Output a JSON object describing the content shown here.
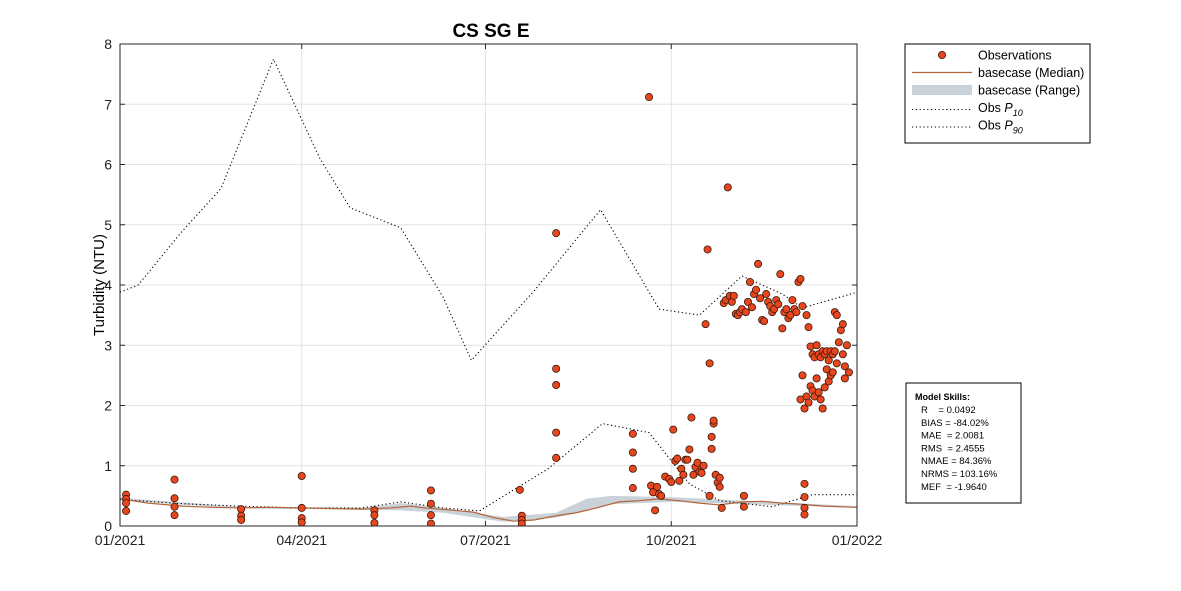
{
  "chart_data": {
    "type": "scatter",
    "title": "CS SG E",
    "xlabel": "",
    "ylabel": "Turbidity (NTU)",
    "xlim": [
      "2021-01-01",
      "2022-01-01"
    ],
    "ylim": [
      0,
      8
    ],
    "grid": true,
    "x_ticks": [
      "01/2021",
      "04/2021",
      "07/2021",
      "10/2021",
      "01/2022"
    ],
    "y_ticks": [
      "0",
      "1",
      "2",
      "3",
      "4",
      "5",
      "6",
      "7",
      "8"
    ],
    "legend": {
      "placement": "outside-top-right",
      "entries": [
        {
          "label": "Observations",
          "symbol": "marker"
        },
        {
          "label": "basecase (Median)",
          "symbol": "line"
        },
        {
          "label": "basecase (Range)",
          "symbol": "band"
        },
        {
          "label": "Obs P10",
          "text": "Obs ",
          "italic": "P",
          "sub": "10",
          "symbol": "dotted"
        },
        {
          "label": "Obs P90",
          "text": "Obs ",
          "italic": "P",
          "sub": "90",
          "symbol": "dotted"
        }
      ]
    },
    "colors": {
      "observations": "#e8461c",
      "median": "#b5643a",
      "range": "#c8d2d8",
      "percentile": "#000000"
    },
    "series": [
      {
        "name": "Observations",
        "kind": "scatter",
        "points": [
          [
            "2021-01-04",
            0.52
          ],
          [
            "2021-01-04",
            0.45
          ],
          [
            "2021-01-04",
            0.38
          ],
          [
            "2021-01-04",
            0.25
          ],
          [
            "2021-01-28",
            0.77
          ],
          [
            "2021-01-28",
            0.46
          ],
          [
            "2021-01-28",
            0.32
          ],
          [
            "2021-01-28",
            0.18
          ],
          [
            "2021-03-02",
            0.28
          ],
          [
            "2021-03-02",
            0.17
          ],
          [
            "2021-03-02",
            0.1
          ],
          [
            "2021-04-01",
            0.83
          ],
          [
            "2021-04-01",
            0.3
          ],
          [
            "2021-04-01",
            0.13
          ],
          [
            "2021-04-01",
            0.06
          ],
          [
            "2021-05-07",
            0.26
          ],
          [
            "2021-05-07",
            0.18
          ],
          [
            "2021-05-07",
            0.05
          ],
          [
            "2021-06-04",
            0.59
          ],
          [
            "2021-06-04",
            0.37
          ],
          [
            "2021-06-04",
            0.18
          ],
          [
            "2021-06-04",
            0.04
          ],
          [
            "2021-07-18",
            0.6
          ],
          [
            "2021-07-19",
            0.17
          ],
          [
            "2021-07-19",
            0.1
          ],
          [
            "2021-07-19",
            0.04
          ],
          [
            "2021-08-05",
            4.86
          ],
          [
            "2021-08-05",
            2.61
          ],
          [
            "2021-08-05",
            2.34
          ],
          [
            "2021-08-05",
            1.55
          ],
          [
            "2021-08-05",
            1.13
          ],
          [
            "2021-09-12",
            1.53
          ],
          [
            "2021-09-12",
            1.22
          ],
          [
            "2021-09-12",
            0.95
          ],
          [
            "2021-09-12",
            0.63
          ],
          [
            "2021-09-20",
            7.12
          ],
          [
            "2021-09-21",
            0.67
          ],
          [
            "2021-09-22",
            0.56
          ],
          [
            "2021-09-23",
            0.26
          ],
          [
            "2021-09-24",
            0.65
          ],
          [
            "2021-09-25",
            0.53
          ],
          [
            "2021-09-26",
            0.5
          ],
          [
            "2021-09-28",
            0.82
          ],
          [
            "2021-09-30",
            0.78
          ],
          [
            "2021-10-01",
            0.73
          ],
          [
            "2021-10-02",
            1.6
          ],
          [
            "2021-10-03",
            1.08
          ],
          [
            "2021-10-04",
            1.12
          ],
          [
            "2021-10-05",
            0.75
          ],
          [
            "2021-10-06",
            0.95
          ],
          [
            "2021-10-07",
            0.85
          ],
          [
            "2021-10-08",
            1.1
          ],
          [
            "2021-10-09",
            1.1
          ],
          [
            "2021-10-10",
            1.27
          ],
          [
            "2021-10-11",
            1.8
          ],
          [
            "2021-10-12",
            0.85
          ],
          [
            "2021-10-13",
            0.98
          ],
          [
            "2021-10-14",
            1.05
          ],
          [
            "2021-10-15",
            0.9
          ],
          [
            "2021-10-16",
            0.88
          ],
          [
            "2021-10-17",
            1.0
          ],
          [
            "2021-10-18",
            3.35
          ],
          [
            "2021-10-19",
            4.59
          ],
          [
            "2021-10-20",
            2.7
          ],
          [
            "2021-10-20",
            0.5
          ],
          [
            "2021-10-21",
            1.28
          ],
          [
            "2021-10-21",
            1.48
          ],
          [
            "2021-10-22",
            1.7
          ],
          [
            "2021-10-22",
            1.75
          ],
          [
            "2021-10-23",
            0.85
          ],
          [
            "2021-10-24",
            0.72
          ],
          [
            "2021-10-25",
            0.65
          ],
          [
            "2021-10-25",
            0.8
          ],
          [
            "2021-10-26",
            0.3
          ],
          [
            "2021-10-27",
            3.7
          ],
          [
            "2021-10-28",
            3.75
          ],
          [
            "2021-10-29",
            5.62
          ],
          [
            "2021-10-30",
            3.82
          ],
          [
            "2021-10-31",
            3.72
          ],
          [
            "2021-11-01",
            3.82
          ],
          [
            "2021-11-02",
            3.52
          ],
          [
            "2021-11-03",
            3.5
          ],
          [
            "2021-11-04",
            3.55
          ],
          [
            "2021-11-05",
            3.6
          ],
          [
            "2021-11-06",
            0.5
          ],
          [
            "2021-11-06",
            0.32
          ],
          [
            "2021-11-07",
            3.55
          ],
          [
            "2021-11-08",
            3.72
          ],
          [
            "2021-11-09",
            4.05
          ],
          [
            "2021-11-10",
            3.63
          ],
          [
            "2021-11-11",
            3.85
          ],
          [
            "2021-11-12",
            3.92
          ],
          [
            "2021-11-13",
            4.35
          ],
          [
            "2021-11-14",
            3.78
          ],
          [
            "2021-11-15",
            3.42
          ],
          [
            "2021-11-16",
            3.4
          ],
          [
            "2021-11-17",
            3.85
          ],
          [
            "2021-11-18",
            3.72
          ],
          [
            "2021-11-19",
            3.65
          ],
          [
            "2021-11-20",
            3.55
          ],
          [
            "2021-11-21",
            3.6
          ],
          [
            "2021-11-22",
            3.75
          ],
          [
            "2021-11-23",
            3.68
          ],
          [
            "2021-11-24",
            4.18
          ],
          [
            "2021-11-25",
            3.28
          ],
          [
            "2021-11-26",
            3.55
          ],
          [
            "2021-11-27",
            3.6
          ],
          [
            "2021-11-28",
            3.45
          ],
          [
            "2021-11-29",
            3.5
          ],
          [
            "2021-11-30",
            3.75
          ],
          [
            "2021-12-01",
            3.6
          ],
          [
            "2021-12-02",
            3.55
          ],
          [
            "2021-12-03",
            4.05
          ],
          [
            "2021-12-04",
            2.1
          ],
          [
            "2021-12-04",
            4.1
          ],
          [
            "2021-12-05",
            2.5
          ],
          [
            "2021-12-05",
            3.65
          ],
          [
            "2021-12-06",
            1.95
          ],
          [
            "2021-12-06",
            0.7
          ],
          [
            "2021-12-06",
            0.48
          ],
          [
            "2021-12-06",
            0.3
          ],
          [
            "2021-12-06",
            0.19
          ],
          [
            "2021-12-07",
            3.5
          ],
          [
            "2021-12-07",
            2.15
          ],
          [
            "2021-12-08",
            3.3
          ],
          [
            "2021-12-08",
            2.05
          ],
          [
            "2021-12-09",
            2.98
          ],
          [
            "2021-12-09",
            2.32
          ],
          [
            "2021-12-10",
            2.85
          ],
          [
            "2021-12-10",
            2.25
          ],
          [
            "2021-12-11",
            2.8
          ],
          [
            "2021-12-11",
            2.15
          ],
          [
            "2021-12-12",
            3.0
          ],
          [
            "2021-12-12",
            2.45
          ],
          [
            "2021-12-13",
            2.85
          ],
          [
            "2021-12-13",
            2.22
          ],
          [
            "2021-12-14",
            2.8
          ],
          [
            "2021-12-14",
            2.1
          ],
          [
            "2021-12-15",
            2.9
          ],
          [
            "2021-12-15",
            1.95
          ],
          [
            "2021-12-16",
            2.85
          ],
          [
            "2021-12-16",
            2.3
          ],
          [
            "2021-12-17",
            2.9
          ],
          [
            "2021-12-17",
            2.6
          ],
          [
            "2021-12-18",
            2.75
          ],
          [
            "2021-12-18",
            2.4
          ],
          [
            "2021-12-19",
            2.9
          ],
          [
            "2021-12-19",
            2.5
          ],
          [
            "2021-12-20",
            2.85
          ],
          [
            "2021-12-20",
            2.55
          ],
          [
            "2021-12-21",
            3.55
          ],
          [
            "2021-12-21",
            2.9
          ],
          [
            "2021-12-22",
            3.5
          ],
          [
            "2021-12-22",
            2.7
          ],
          [
            "2021-12-23",
            3.05
          ],
          [
            "2021-12-24",
            3.25
          ],
          [
            "2021-12-25",
            3.35
          ],
          [
            "2021-12-25",
            2.85
          ],
          [
            "2021-12-26",
            2.45
          ],
          [
            "2021-12-26",
            2.65
          ],
          [
            "2021-12-27",
            3.0
          ],
          [
            "2021-12-28",
            2.55
          ]
        ]
      },
      {
        "name": "basecase (Median)",
        "kind": "line",
        "points": [
          [
            "2021-01-01",
            0.45
          ],
          [
            "2021-01-15",
            0.38
          ],
          [
            "2021-02-01",
            0.33
          ],
          [
            "2021-02-15",
            0.31
          ],
          [
            "2021-03-01",
            0.3
          ],
          [
            "2021-03-15",
            0.31
          ],
          [
            "2021-04-01",
            0.3
          ],
          [
            "2021-04-15",
            0.29
          ],
          [
            "2021-05-01",
            0.28
          ],
          [
            "2021-05-15",
            0.3
          ],
          [
            "2021-05-25",
            0.33
          ],
          [
            "2021-06-01",
            0.3
          ],
          [
            "2021-06-15",
            0.26
          ],
          [
            "2021-06-25",
            0.23
          ],
          [
            "2021-07-05",
            0.14
          ],
          [
            "2021-07-15",
            0.08
          ],
          [
            "2021-07-25",
            0.1
          ],
          [
            "2021-08-05",
            0.17
          ],
          [
            "2021-08-15",
            0.22
          ],
          [
            "2021-08-25",
            0.3
          ],
          [
            "2021-09-05",
            0.4
          ],
          [
            "2021-09-15",
            0.42
          ],
          [
            "2021-09-25",
            0.45
          ],
          [
            "2021-10-05",
            0.42
          ],
          [
            "2021-10-15",
            0.38
          ],
          [
            "2021-10-25",
            0.35
          ],
          [
            "2021-11-05",
            0.4
          ],
          [
            "2021-11-15",
            0.41
          ],
          [
            "2021-11-25",
            0.38
          ],
          [
            "2021-12-05",
            0.36
          ],
          [
            "2021-12-15",
            0.33
          ],
          [
            "2022-01-01",
            0.31
          ]
        ]
      },
      {
        "name": "basecase (Range)",
        "kind": "band",
        "lower": [
          [
            "2021-01-01",
            0.43
          ],
          [
            "2021-03-01",
            0.29
          ],
          [
            "2021-05-01",
            0.27
          ],
          [
            "2021-05-20",
            0.26
          ],
          [
            "2021-06-10",
            0.22
          ],
          [
            "2021-07-10",
            0.07
          ],
          [
            "2021-08-05",
            0.14
          ],
          [
            "2021-08-20",
            0.25
          ],
          [
            "2021-09-01",
            0.36
          ],
          [
            "2021-10-01",
            0.4
          ],
          [
            "2021-11-01",
            0.37
          ],
          [
            "2022-01-01",
            0.3
          ]
        ],
        "upper": [
          [
            "2021-01-01",
            0.47
          ],
          [
            "2021-03-01",
            0.32
          ],
          [
            "2021-05-01",
            0.3
          ],
          [
            "2021-05-20",
            0.38
          ],
          [
            "2021-06-10",
            0.3
          ],
          [
            "2021-07-10",
            0.15
          ],
          [
            "2021-08-05",
            0.22
          ],
          [
            "2021-08-20",
            0.45
          ],
          [
            "2021-09-01",
            0.5
          ],
          [
            "2021-10-01",
            0.48
          ],
          [
            "2021-11-01",
            0.43
          ],
          [
            "2022-01-01",
            0.33
          ]
        ]
      },
      {
        "name": "Obs P10",
        "kind": "dotted",
        "points": [
          [
            "2021-01-01",
            0.44
          ],
          [
            "2021-02-01",
            0.37
          ],
          [
            "2021-03-01",
            0.33
          ],
          [
            "2021-04-01",
            0.3
          ],
          [
            "2021-05-01",
            0.3
          ],
          [
            "2021-05-20",
            0.4
          ],
          [
            "2021-06-10",
            0.3
          ],
          [
            "2021-06-28",
            0.25
          ],
          [
            "2021-08-01",
            0.95
          ],
          [
            "2021-08-28",
            1.7
          ],
          [
            "2021-09-20",
            1.55
          ],
          [
            "2021-10-10",
            0.7
          ],
          [
            "2021-10-25",
            0.42
          ],
          [
            "2021-11-20",
            0.32
          ],
          [
            "2021-12-10",
            0.52
          ],
          [
            "2022-01-01",
            0.52
          ]
        ]
      },
      {
        "name": "Obs P90",
        "kind": "dotted",
        "points": [
          [
            "2021-01-01",
            3.88
          ],
          [
            "2021-01-10",
            4.0
          ],
          [
            "2021-02-01",
            4.9
          ],
          [
            "2021-02-20",
            5.6
          ],
          [
            "2021-03-18",
            7.75
          ],
          [
            "2021-04-10",
            6.1
          ],
          [
            "2021-04-25",
            5.28
          ],
          [
            "2021-05-20",
            4.95
          ],
          [
            "2021-06-10",
            3.8
          ],
          [
            "2021-06-24",
            2.75
          ],
          [
            "2021-07-25",
            3.9
          ],
          [
            "2021-08-27",
            5.25
          ],
          [
            "2021-09-25",
            3.6
          ],
          [
            "2021-10-15",
            3.5
          ],
          [
            "2021-11-05",
            4.15
          ],
          [
            "2021-11-25",
            3.85
          ],
          [
            "2021-12-05",
            3.62
          ],
          [
            "2022-01-01",
            3.88
          ]
        ]
      }
    ]
  },
  "skills": {
    "title": "Model Skills:",
    "lines": [
      "R    = 0.0492",
      "BIAS = -84.02%",
      "MAE  = 2.0081",
      "RMS  = 2.4555",
      "NMAE = 84.36%",
      "NRMS = 103.16%",
      "MEF  = -1.9640"
    ]
  }
}
